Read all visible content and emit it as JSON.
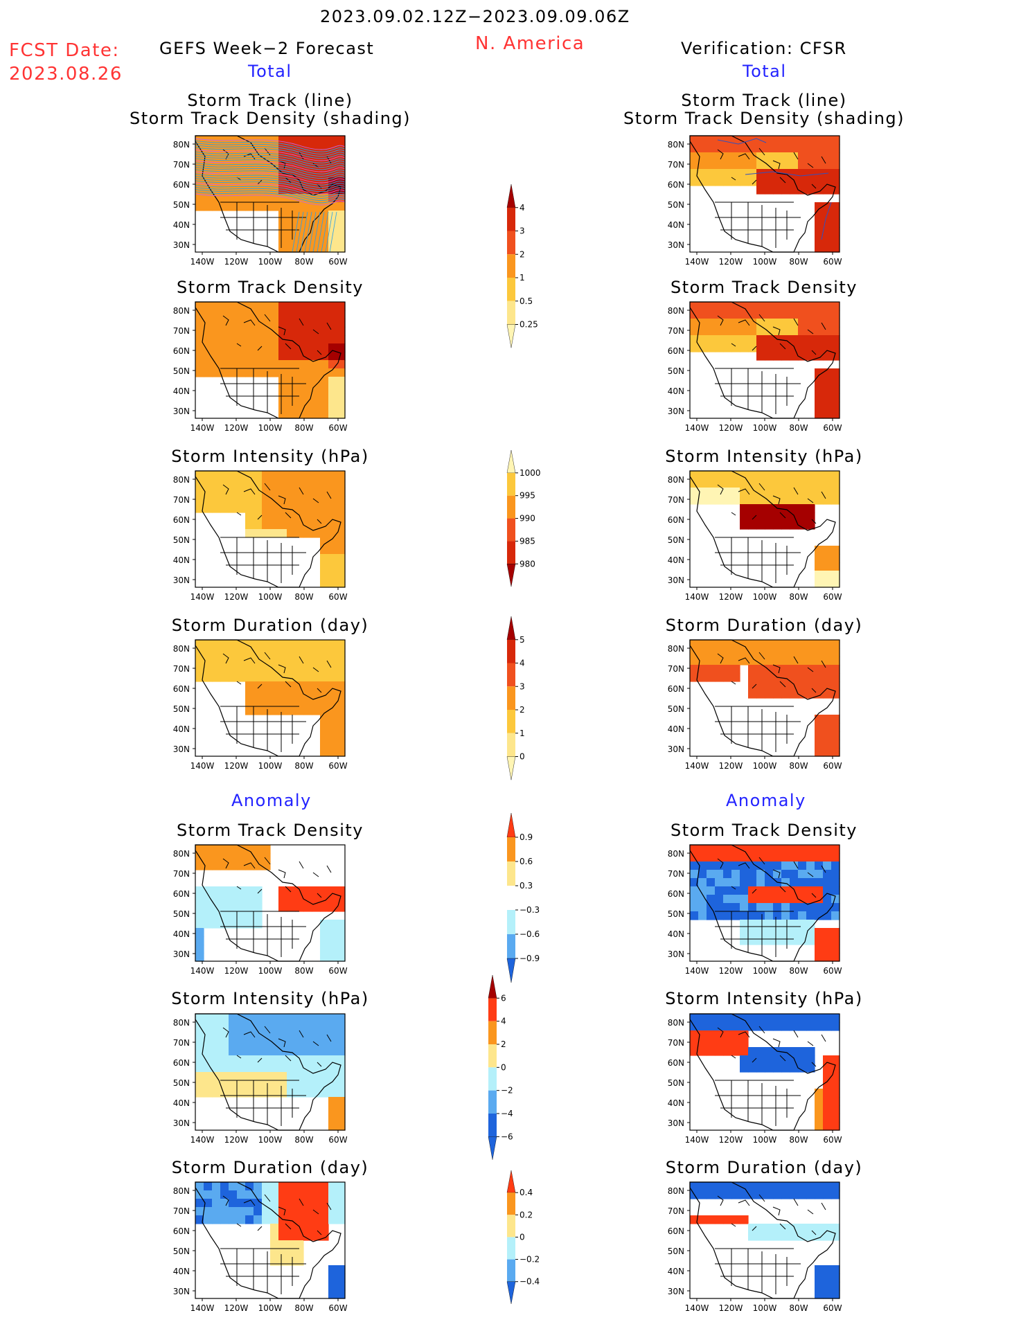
{
  "header": {
    "date_range": "2023.09.02.12Z−2023.09.09.06Z",
    "region": "N. America",
    "fcst_label": "FCST Date:",
    "fcst_date": "2023.08.26",
    "left_title": "GEFS Week−2 Forecast",
    "right_title": "Verification: CFSR",
    "total_label": "Total",
    "anomaly_label": "Anomaly"
  },
  "panel_titles": {
    "track_line": "Storm Track (line)",
    "track_shading": "Storm Track Density (shading)",
    "track_density": "Storm Track Density",
    "intensity": "Storm Intensity (hPa)",
    "duration": "Storm Duration (day)"
  },
  "axes": {
    "lat_labels": [
      "80N",
      "70N",
      "60N",
      "50N",
      "40N",
      "30N"
    ],
    "lon_labels": [
      "140W",
      "120W",
      "100W",
      "80W",
      "60W"
    ]
  },
  "colorbars": [
    {
      "id": "density-total",
      "labels": [
        "4",
        "3",
        "2",
        "1",
        "0.5",
        "0.25"
      ],
      "colors": [
        "#a50000",
        "#d7280a",
        "#f0501e",
        "#fa961e",
        "#fcc83c",
        "#fde68c",
        "#fff5b4"
      ]
    },
    {
      "id": "intensity-total",
      "labels": [
        "1000",
        "995",
        "990",
        "985",
        "980"
      ],
      "colors": [
        "#fff5b4",
        "#fcc83c",
        "#fa961e",
        "#f0501e",
        "#d7280a",
        "#a50000"
      ]
    },
    {
      "id": "duration-total",
      "labels": [
        "5",
        "4",
        "3",
        "2",
        "1",
        "0"
      ],
      "colors": [
        "#a50000",
        "#d7280a",
        "#f0501e",
        "#fa961e",
        "#fcc83c",
        "#fde68c",
        "#fff5b4"
      ]
    },
    {
      "id": "density-anom",
      "labels": [
        "0.9",
        "0.6",
        "0.3",
        "−0.3",
        "−0.6",
        "−0.9"
      ],
      "colors": [
        "#ff3c14",
        "#fa961e",
        "#fde68c",
        "#ffffff",
        "#b4f0fa",
        "#5aaaf0",
        "#1e64dc"
      ]
    },
    {
      "id": "intensity-anom",
      "labels": [
        "6",
        "4",
        "2",
        "0",
        "−2",
        "−4",
        "−6"
      ],
      "colors": [
        "#a50000",
        "#ff3c14",
        "#fa961e",
        "#fde68c",
        "#b4f0fa",
        "#5aaaf0",
        "#1e64dc",
        "#1e64dc"
      ]
    },
    {
      "id": "duration-anom",
      "labels": [
        "0.4",
        "0.2",
        "0",
        "−0.2",
        "−0.4"
      ],
      "colors": [
        "#ff3c14",
        "#fa961e",
        "#fde68c",
        "#b4f0fa",
        "#5aaaf0",
        "#1e64dc"
      ]
    }
  ],
  "colors": {
    "red_text": "#ff3333",
    "blue_text": "#2222ff"
  }
}
